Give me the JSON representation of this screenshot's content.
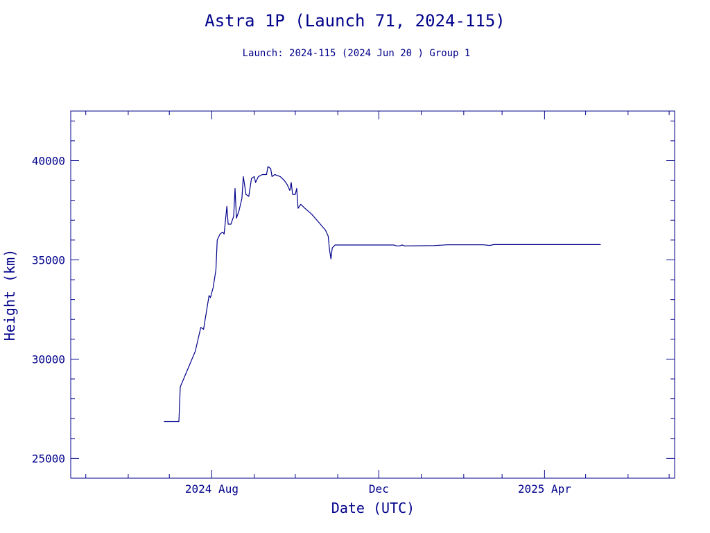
{
  "chart_data": {
    "type": "line",
    "title": "Astra 1P (Launch 71, 2024-115)",
    "subtitle": "Launch: 2024-115  (2024 Jun 20 )  Group 1",
    "xlabel": "Date (UTC)",
    "ylabel": "Height (km)",
    "xlim": [
      "2024-04-20",
      "2025-07-05"
    ],
    "ylim": [
      24000,
      42500
    ],
    "grid": false,
    "color": "#00008b",
    "x_ticks": [
      {
        "date": "2024-08-01",
        "label": "2024 Aug"
      },
      {
        "date": "2024-12-01",
        "label": "Dec"
      },
      {
        "date": "2025-04-01",
        "label": "2025 Apr"
      }
    ],
    "x_minor_ticks": [
      "2024-05-01",
      "2024-06-01",
      "2024-07-01",
      "2024-09-01",
      "2024-10-01",
      "2024-11-01",
      "2025-01-01",
      "2025-02-01",
      "2025-03-01",
      "2025-05-01",
      "2025-06-01",
      "2025-07-01"
    ],
    "y_ticks": [
      {
        "value": 25000,
        "label": "25000"
      },
      {
        "value": 30000,
        "label": "30000"
      },
      {
        "value": 35000,
        "label": "35000"
      },
      {
        "value": 40000,
        "label": "40000"
      }
    ],
    "y_minor_step": 1000,
    "series": [
      {
        "points": [
          [
            "2024-06-27",
            26850
          ],
          [
            "2024-07-08",
            26850
          ],
          [
            "2024-07-09",
            28600
          ],
          [
            "2024-07-20",
            30400
          ],
          [
            "2024-07-24",
            31600
          ],
          [
            "2024-07-26",
            31500
          ],
          [
            "2024-07-30",
            33200
          ],
          [
            "2024-07-31",
            33100
          ],
          [
            "2024-08-02",
            33600
          ],
          [
            "2024-08-04",
            34500
          ],
          [
            "2024-08-05",
            36000
          ],
          [
            "2024-08-07",
            36300
          ],
          [
            "2024-08-09",
            36400
          ],
          [
            "2024-08-10",
            36300
          ],
          [
            "2024-08-12",
            37700
          ],
          [
            "2024-08-13",
            36800
          ],
          [
            "2024-08-15",
            36800
          ],
          [
            "2024-08-17",
            37200
          ],
          [
            "2024-08-18",
            38600
          ],
          [
            "2024-08-19",
            37100
          ],
          [
            "2024-08-21",
            37500
          ],
          [
            "2024-08-23",
            38100
          ],
          [
            "2024-08-24",
            39200
          ],
          [
            "2024-08-26",
            38300
          ],
          [
            "2024-08-28",
            38200
          ],
          [
            "2024-08-30",
            39100
          ],
          [
            "2024-09-01",
            39200
          ],
          [
            "2024-09-02",
            38900
          ],
          [
            "2024-09-04",
            39200
          ],
          [
            "2024-09-07",
            39300
          ],
          [
            "2024-09-10",
            39300
          ],
          [
            "2024-09-11",
            39700
          ],
          [
            "2024-09-13",
            39600
          ],
          [
            "2024-09-14",
            39200
          ],
          [
            "2024-09-16",
            39300
          ],
          [
            "2024-09-20",
            39200
          ],
          [
            "2024-09-23",
            39000
          ],
          [
            "2024-09-25",
            38800
          ],
          [
            "2024-09-27",
            38500
          ],
          [
            "2024-09-28",
            38900
          ],
          [
            "2024-09-29",
            38300
          ],
          [
            "2024-10-01",
            38300
          ],
          [
            "2024-10-02",
            38600
          ],
          [
            "2024-10-03",
            37600
          ],
          [
            "2024-10-05",
            37800
          ],
          [
            "2024-10-08",
            37600
          ],
          [
            "2024-10-13",
            37300
          ],
          [
            "2024-10-18",
            36900
          ],
          [
            "2024-10-23",
            36500
          ],
          [
            "2024-10-25",
            36200
          ],
          [
            "2024-10-26",
            35500
          ],
          [
            "2024-10-27",
            35050
          ],
          [
            "2024-10-28",
            35600
          ],
          [
            "2024-10-30",
            35750
          ],
          [
            "2024-11-15",
            35750
          ],
          [
            "2024-12-12",
            35750
          ],
          [
            "2024-12-14",
            35700
          ],
          [
            "2024-12-16",
            35700
          ],
          [
            "2024-12-18",
            35750
          ],
          [
            "2024-12-20",
            35700
          ],
          [
            "2025-01-10",
            35720
          ],
          [
            "2025-01-20",
            35760
          ],
          [
            "2025-02-15",
            35760
          ],
          [
            "2025-02-20",
            35730
          ],
          [
            "2025-02-23",
            35770
          ],
          [
            "2025-05-12",
            35770
          ]
        ]
      }
    ]
  }
}
